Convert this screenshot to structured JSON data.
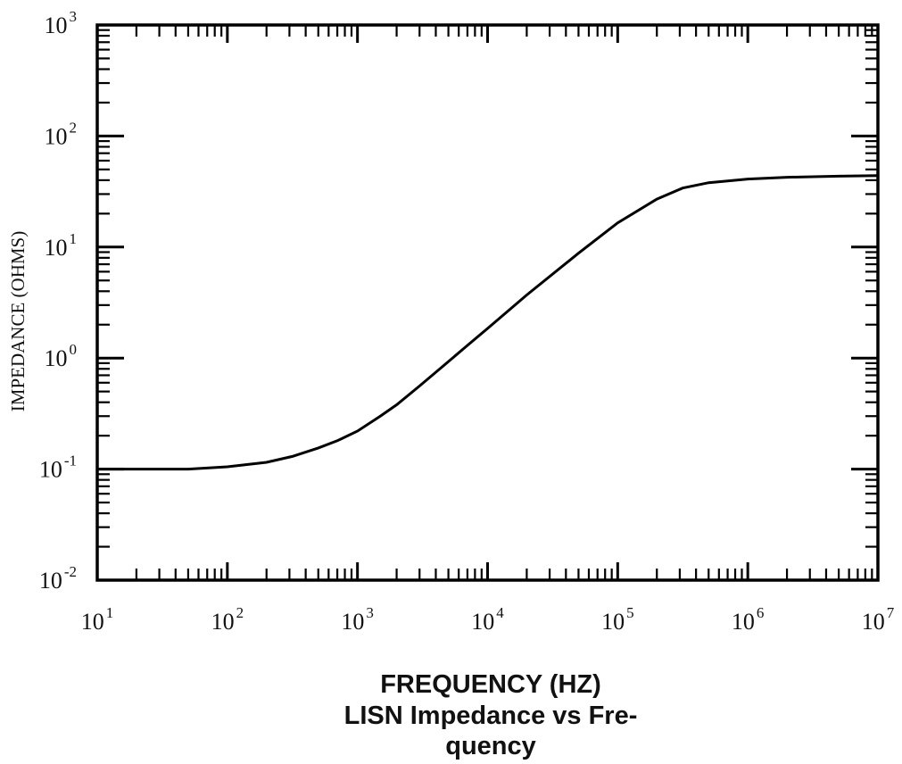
{
  "chart_data": {
    "type": "line",
    "xlabel": "FREQUENCY (HZ)",
    "ylabel": "IMPEDANCE (OHMS)",
    "caption_lines": [
      "LISN Impedance vs Fre-",
      "quency"
    ],
    "x_scale": "log",
    "y_scale": "log",
    "xlim": [
      10,
      10000000
    ],
    "ylim": [
      0.01,
      1000
    ],
    "x_ticks": [
      {
        "base": "10",
        "exp": "1",
        "value": 10
      },
      {
        "base": "10",
        "exp": "2",
        "value": 100
      },
      {
        "base": "10",
        "exp": "3",
        "value": 1000
      },
      {
        "base": "10",
        "exp": "4",
        "value": 10000
      },
      {
        "base": "10",
        "exp": "5",
        "value": 100000
      },
      {
        "base": "10",
        "exp": "6",
        "value": 1000000
      },
      {
        "base": "10",
        "exp": "7",
        "value": 10000000
      }
    ],
    "y_ticks": [
      {
        "base": "10",
        "exp": "3",
        "value": 1000
      },
      {
        "base": "10",
        "exp": "2",
        "value": 100
      },
      {
        "base": "10",
        "exp": "1",
        "value": 10
      },
      {
        "base": "10",
        "exp": "0",
        "value": 1
      },
      {
        "base": "10",
        "exp": "-1",
        "value": 0.1
      },
      {
        "base": "10",
        "exp": "-2",
        "value": 0.01
      }
    ],
    "grid": false,
    "series": [
      {
        "x": [
          10,
          20,
          50,
          100,
          200,
          316,
          500,
          700,
          1000,
          1500,
          2000,
          3000,
          5000,
          7000,
          10000,
          20000,
          50000,
          100000,
          200000,
          316000,
          500000,
          1000000,
          2000000,
          5000000,
          10000000
        ],
        "y": [
          0.1,
          0.1,
          0.1,
          0.105,
          0.115,
          0.13,
          0.155,
          0.18,
          0.22,
          0.3,
          0.38,
          0.56,
          0.93,
          1.3,
          1.85,
          3.7,
          8.8,
          16.5,
          27.0,
          34.0,
          38.0,
          41.0,
          42.5,
          43.5,
          44.0
        ]
      }
    ]
  }
}
